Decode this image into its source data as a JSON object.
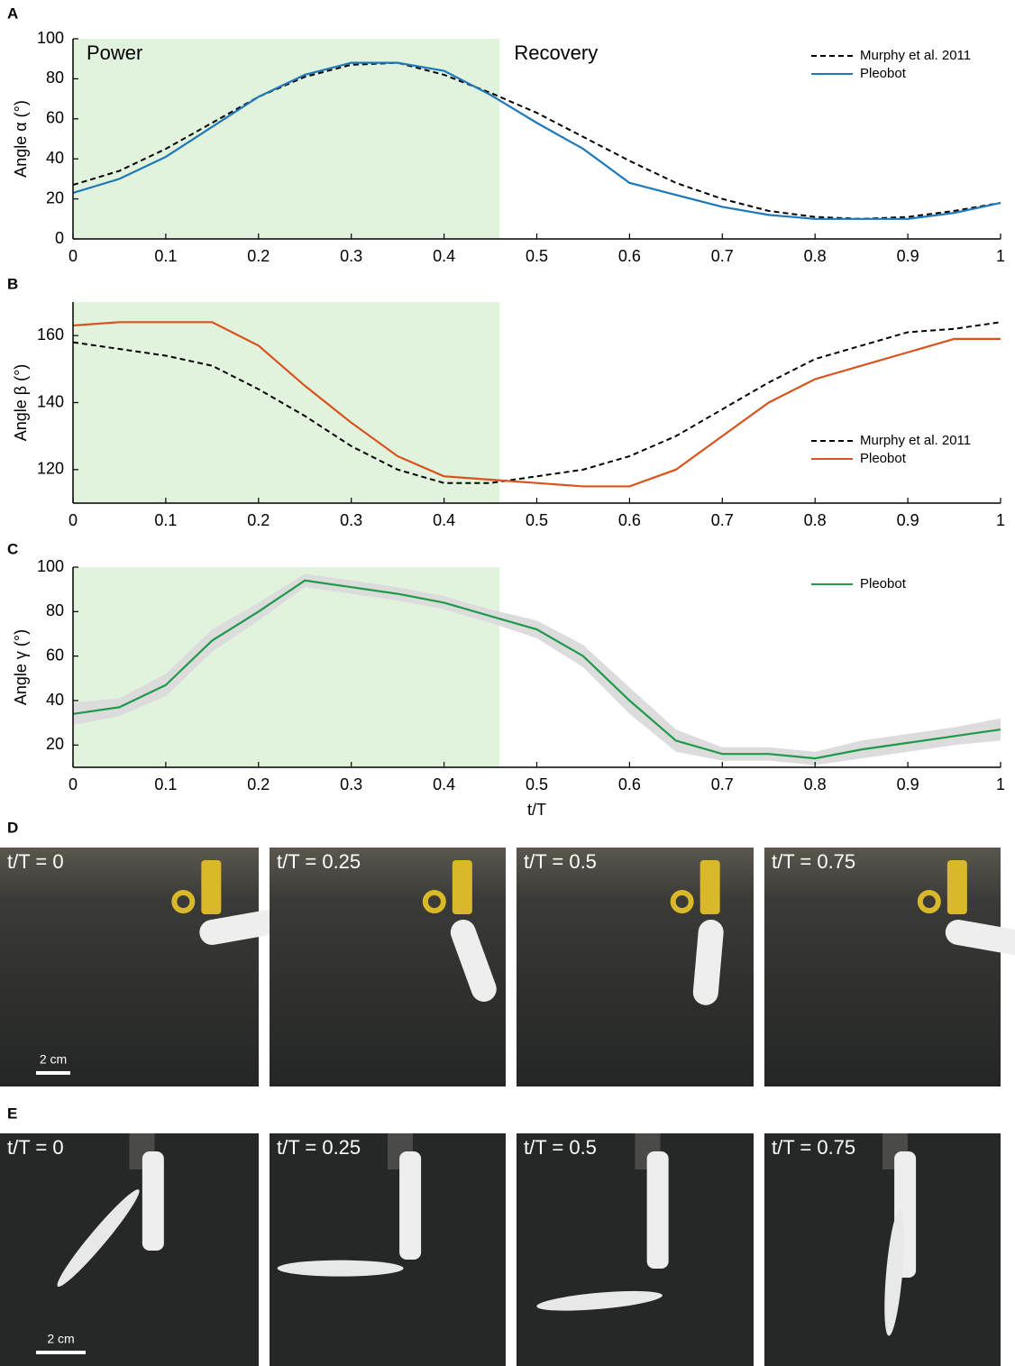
{
  "chart_data": [
    {
      "type": "line",
      "panel": "A",
      "ylabel": "Angle α (°)",
      "x": [
        0,
        0.05,
        0.1,
        0.15,
        0.2,
        0.25,
        0.3,
        0.35,
        0.4,
        0.45,
        0.5,
        0.55,
        0.6,
        0.65,
        0.7,
        0.75,
        0.8,
        0.85,
        0.9,
        0.95,
        1
      ],
      "xlim": [
        0,
        1
      ],
      "xticks": [
        0,
        0.1,
        0.2,
        0.3,
        0.4,
        0.5,
        0.6,
        0.7,
        0.8,
        0.9,
        1
      ],
      "ylim": [
        0,
        100
      ],
      "yticks": [
        0,
        20,
        40,
        60,
        80,
        100
      ],
      "shade": {
        "x": [
          0,
          0.46
        ],
        "color": "#e1f2dd"
      },
      "annotations": [
        {
          "text": "Power",
          "color": "#3cb371"
        },
        {
          "text": "Recovery",
          "color": "#b9b9b9"
        }
      ],
      "legend": "upper right",
      "series": [
        {
          "name": "Murphy et al. 2011",
          "color": "#000000",
          "style": "dashed",
          "values": [
            27,
            34,
            45,
            58,
            71,
            81,
            87,
            88,
            82,
            73,
            63,
            51,
            39,
            28,
            20,
            14,
            11,
            10,
            11,
            14,
            18
          ]
        },
        {
          "name": "Pleobot",
          "color": "#1f78b9",
          "style": "solid",
          "values": [
            23,
            30,
            41,
            56,
            71,
            82,
            88,
            88,
            84,
            72,
            58,
            45,
            28,
            22,
            16,
            12,
            10,
            10,
            10,
            13,
            18
          ]
        }
      ]
    },
    {
      "type": "line",
      "panel": "B",
      "ylabel": "Angle β (°)",
      "x": [
        0,
        0.05,
        0.1,
        0.15,
        0.2,
        0.25,
        0.3,
        0.35,
        0.4,
        0.45,
        0.5,
        0.55,
        0.6,
        0.65,
        0.7,
        0.75,
        0.8,
        0.85,
        0.9,
        0.95,
        1
      ],
      "xlim": [
        0,
        1
      ],
      "xticks": [
        0,
        0.1,
        0.2,
        0.3,
        0.4,
        0.5,
        0.6,
        0.7,
        0.8,
        0.9,
        1
      ],
      "ylim": [
        110,
        170
      ],
      "yticks": [
        120,
        140,
        160
      ],
      "shade": {
        "x": [
          0,
          0.46
        ],
        "color": "#e1f2dd"
      },
      "legend": "center right",
      "series": [
        {
          "name": "Murphy et al. 2011",
          "color": "#000000",
          "style": "dashed",
          "values": [
            158,
            156,
            154,
            151,
            144,
            136,
            127,
            120,
            116,
            116,
            118,
            120,
            124,
            130,
            138,
            146,
            153,
            157,
            161,
            162,
            164
          ]
        },
        {
          "name": "Pleobot",
          "color": "#d9531e",
          "style": "solid",
          "values": [
            163,
            164,
            164,
            164,
            157,
            145,
            134,
            124,
            118,
            117,
            116,
            115,
            115,
            120,
            130,
            140,
            147,
            151,
            155,
            159,
            159
          ]
        }
      ]
    },
    {
      "type": "line",
      "panel": "C",
      "ylabel": "Angle γ (°)",
      "xlabel": "t/T",
      "x": [
        0,
        0.05,
        0.1,
        0.15,
        0.2,
        0.25,
        0.3,
        0.35,
        0.4,
        0.45,
        0.5,
        0.55,
        0.6,
        0.65,
        0.7,
        0.75,
        0.8,
        0.85,
        0.9,
        0.95,
        1
      ],
      "xlim": [
        0,
        1
      ],
      "xticks": [
        0,
        0.1,
        0.2,
        0.3,
        0.4,
        0.5,
        0.6,
        0.7,
        0.8,
        0.9,
        1
      ],
      "ylim": [
        10,
        100
      ],
      "yticks": [
        20,
        40,
        60,
        80,
        100
      ],
      "shade": {
        "x": [
          0,
          0.46
        ],
        "color": "#e1f2dd"
      },
      "legend": "upper right",
      "series": [
        {
          "name": "Pleobot",
          "color": "#1e9a4a",
          "style": "solid",
          "band_color": "#dcdcdc",
          "values": [
            34,
            37,
            47,
            67,
            80,
            94,
            91,
            88,
            84,
            78,
            72,
            60,
            40,
            22,
            16,
            16,
            14,
            18,
            21,
            24,
            27
          ],
          "spread": [
            5,
            4,
            5,
            5,
            4,
            3,
            3,
            3,
            3,
            3,
            4,
            5,
            6,
            5,
            3,
            3,
            3,
            4,
            4,
            4,
            5
          ]
        }
      ]
    }
  ],
  "photo_panels": [
    {
      "panel": "D",
      "frames": [
        "t/T = 0",
        "t/T = 0.25",
        "t/T = 0.5",
        "t/T = 0.75"
      ],
      "scale_bar": "2 cm"
    },
    {
      "panel": "E",
      "frames": [
        "t/T = 0",
        "t/T = 0.25",
        "t/T = 0.5",
        "t/T = 0.75"
      ],
      "scale_bar": "2 cm"
    }
  ]
}
